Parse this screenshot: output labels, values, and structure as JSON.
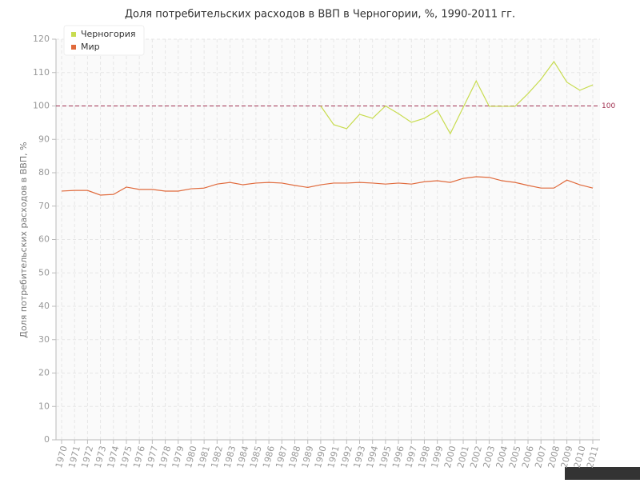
{
  "chart_data": {
    "type": "line",
    "title": "Доля потребительских расходов в ВВП в Черногории, %, 1990-2011 гг.",
    "y_label": "Доля потребительских расходов в ВВП, %",
    "categories": [
      "1970",
      "1971",
      "1972",
      "1973",
      "1974",
      "1975",
      "1976",
      "1977",
      "1978",
      "1979",
      "1980",
      "1981",
      "1982",
      "1983",
      "1984",
      "1985",
      "1986",
      "1987",
      "1988",
      "1989",
      "1990",
      "1991",
      "1992",
      "1993",
      "1994",
      "1995",
      "1996",
      "1997",
      "1998",
      "1999",
      "2000",
      "2001",
      "2002",
      "2003",
      "2004",
      "2005",
      "2006",
      "2007",
      "2008",
      "2009",
      "2010",
      "2011"
    ],
    "series": [
      {
        "name": "Черногория",
        "color": "#c8dc50",
        "values": [
          null,
          null,
          null,
          null,
          null,
          null,
          null,
          null,
          null,
          null,
          null,
          null,
          null,
          null,
          null,
          null,
          null,
          null,
          null,
          null,
          100,
          94.4,
          93.2,
          97.5,
          96.3,
          100,
          97.7,
          95.1,
          96.3,
          98.7,
          91.7,
          99.6,
          107.5,
          99.9,
          99.9,
          99.9,
          103.7,
          108,
          113.3,
          107.1,
          104.7,
          106.3
        ]
      },
      {
        "name": "Мир",
        "color": "#e06a3c",
        "values": [
          74.5,
          74.7,
          74.7,
          73.3,
          73.5,
          75.7,
          75,
          75,
          74.5,
          74.5,
          75.2,
          75.4,
          76.6,
          77.1,
          76.4,
          76.9,
          77.1,
          76.9,
          76.2,
          75.6,
          76.4,
          76.9,
          76.9,
          77.1,
          76.9,
          76.6,
          76.9,
          76.6,
          77.3,
          77.6,
          77.1,
          78.3,
          78.8,
          78.6,
          77.6,
          77.1,
          76.2,
          75.4,
          75.4,
          77.8,
          76.4,
          75.4
        ]
      }
    ],
    "ylim": [
      0,
      120
    ],
    "yticks": [
      0,
      10,
      20,
      30,
      40,
      50,
      60,
      70,
      80,
      90,
      100,
      110,
      120
    ],
    "grid": true,
    "reference_line": 100,
    "reference_color": "#a03050",
    "legend": "top-left",
    "watermark": "http://be5.biz/"
  }
}
